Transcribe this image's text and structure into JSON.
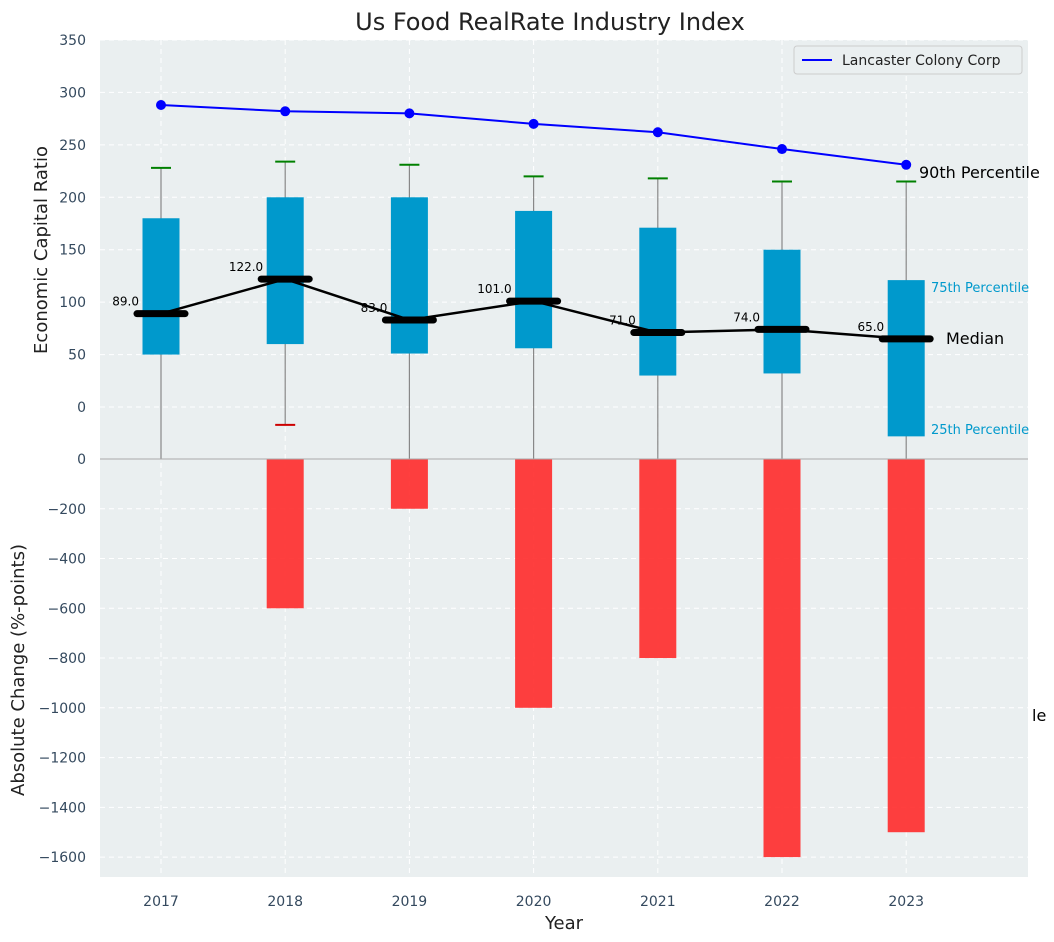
{
  "chart_data": {
    "type": "bar",
    "title": "Us Food RealRate Industry Index",
    "xlabel": "Year",
    "categories": [
      "2017",
      "2018",
      "2019",
      "2020",
      "2021",
      "2022",
      "2023"
    ],
    "top_panel": {
      "ylabel": "Economic Capital Ratio",
      "ylim": [
        -50,
        350
      ],
      "yticks": [
        0,
        50,
        100,
        150,
        200,
        250,
        300,
        350
      ],
      "boxes": [
        {
          "year": "2017",
          "q25": 50,
          "q75": 180,
          "median": 89,
          "median_label": "89.0",
          "p10": -50,
          "p90": 228
        },
        {
          "year": "2018",
          "q25": 60,
          "q75": 200,
          "median": 122,
          "median_label": "122.0",
          "p10": -17,
          "p90": 234
        },
        {
          "year": "2019",
          "q25": 51,
          "q75": 200,
          "median": 83,
          "median_label": "83.0",
          "p10": -50,
          "p90": 231
        },
        {
          "year": "2020",
          "q25": 56,
          "q75": 187,
          "median": 101,
          "median_label": "101.0",
          "p10": -50,
          "p90": 220
        },
        {
          "year": "2021",
          "q25": 30,
          "q75": 171,
          "median": 71,
          "median_label": "71.0",
          "p10": -50,
          "p90": 218
        },
        {
          "year": "2022",
          "q25": 32,
          "q75": 150,
          "median": 74,
          "median_label": "74.0",
          "p10": -50,
          "p90": 215
        },
        {
          "year": "2023",
          "q25": -28,
          "q75": 121,
          "median": 65,
          "median_label": "65.0",
          "p10": -50,
          "p90": 215
        }
      ],
      "series": [
        {
          "name": "Lancaster Colony Corp",
          "values": [
            288,
            282,
            280,
            270,
            262,
            246,
            231
          ],
          "color": "#0000ff"
        }
      ],
      "annotations": {
        "p90": "90th Percentile",
        "median": "Median",
        "p75": "75th Percentile",
        "p25": "25th Percentile"
      },
      "legend_position": "top-right"
    },
    "bottom_panel": {
      "ylabel": "Absolute Change (%-points)",
      "ylim": [
        -1680,
        0
      ],
      "yticks": [
        0,
        -200,
        -400,
        -600,
        -800,
        -1000,
        -1200,
        -1400,
        -1600
      ],
      "values": [
        0,
        -600,
        -200,
        -1000,
        -800,
        -1600,
        -1500
      ],
      "color": "#ff2a2a",
      "clipped_label": "le"
    },
    "colors": {
      "box": "#0099cc",
      "median_line": "#000000",
      "whisker_cap_high": "#008000",
      "whisker_cap_low": "#cc0000",
      "whisker": "#888888",
      "background": "#eaeff0",
      "grid": "#ffffff"
    },
    "grid": true
  }
}
